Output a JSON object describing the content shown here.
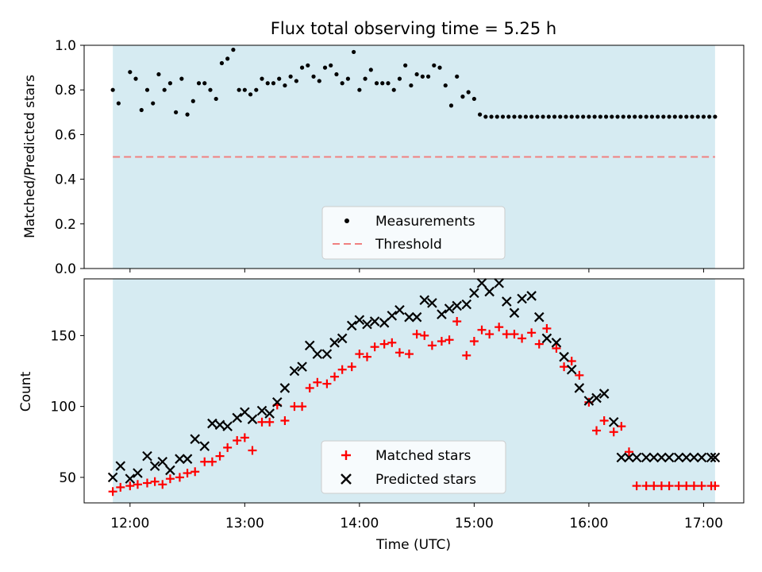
{
  "title": "Flux total observing time = 5.25 h",
  "colors": {
    "span": "#add8e6",
    "measurement": "#000000",
    "threshold": "#f08080",
    "matched": "#ff0000",
    "predicted": "#000000"
  },
  "chart_data": [
    {
      "type": "scatter",
      "ylabel": "Matched/Predicted stars",
      "xlabel": "",
      "ylim": [
        0,
        1.0
      ],
      "yticks": [
        "0.0",
        "0.2",
        "0.4",
        "0.6",
        "0.8",
        "1.0"
      ],
      "xlim": [
        "11:36",
        "17:21"
      ],
      "shaded_span": [
        "11:51",
        "17:06"
      ],
      "legend_position": "lower center",
      "threshold": {
        "name": "Threshold",
        "value": 0.5,
        "style": "dashed"
      },
      "series": [
        {
          "name": "Measurements",
          "marker": "dot",
          "x": [
            "11:51",
            "11:54",
            "12:00",
            "12:03",
            "12:06",
            "12:09",
            "12:12",
            "12:15",
            "12:18",
            "12:21",
            "12:24",
            "12:27",
            "12:30",
            "12:33",
            "12:36",
            "12:39",
            "12:42",
            "12:45",
            "12:48",
            "12:51",
            "12:54",
            "12:57",
            "13:00",
            "13:03",
            "13:06",
            "13:09",
            "13:12",
            "13:15",
            "13:18",
            "13:21",
            "13:24",
            "13:27",
            "13:30",
            "13:33",
            "13:36",
            "13:39",
            "13:42",
            "13:45",
            "13:48",
            "13:51",
            "13:54",
            "13:57",
            "14:00",
            "14:03",
            "14:06",
            "14:09",
            "14:12",
            "14:15",
            "14:18",
            "14:21",
            "14:24",
            "14:27",
            "14:30",
            "14:33",
            "14:36",
            "14:39",
            "14:42",
            "14:45",
            "14:48",
            "14:51",
            "14:54",
            "14:57",
            "15:00",
            "15:03",
            "15:06",
            "15:09",
            "15:12",
            "15:15",
            "15:18",
            "15:21",
            "15:24",
            "15:27",
            "15:30",
            "15:33",
            "15:36",
            "15:39",
            "15:42",
            "15:45",
            "15:48",
            "15:51",
            "15:54",
            "15:57",
            "16:00",
            "16:03",
            "16:06",
            "16:09",
            "16:12",
            "16:15",
            "16:18",
            "16:21",
            "16:24",
            "16:27",
            "16:30",
            "16:33",
            "16:36",
            "16:39",
            "16:42",
            "16:45",
            "16:48",
            "16:51",
            "16:54",
            "16:57",
            "17:00",
            "17:03",
            "17:06"
          ],
          "y": [
            0.8,
            0.74,
            0.88,
            0.85,
            0.71,
            0.8,
            0.74,
            0.87,
            0.8,
            0.83,
            0.7,
            0.85,
            0.69,
            0.75,
            0.83,
            0.83,
            0.8,
            0.76,
            0.92,
            0.94,
            0.98,
            0.8,
            0.8,
            0.78,
            0.8,
            0.85,
            0.83,
            0.83,
            0.85,
            0.82,
            0.86,
            0.84,
            0.9,
            0.91,
            0.86,
            0.84,
            0.9,
            0.91,
            0.87,
            0.83,
            0.85,
            0.97,
            0.8,
            0.85,
            0.89,
            0.83,
            0.83,
            0.83,
            0.8,
            0.85,
            0.91,
            0.82,
            0.87,
            0.86,
            0.86,
            0.91,
            0.9,
            0.82,
            0.73,
            0.86,
            0.77,
            0.79,
            0.76,
            0.69,
            0.68,
            0.68,
            0.68,
            0.68,
            0.68,
            0.68,
            0.68,
            0.68,
            0.68,
            0.68,
            0.68,
            0.68,
            0.68,
            0.68,
            0.68,
            0.68,
            0.68,
            0.68,
            0.68,
            0.68,
            0.68,
            0.68,
            0.68,
            0.68,
            0.68,
            0.68,
            0.68,
            0.68,
            0.68,
            0.68,
            0.68,
            0.68,
            0.68,
            0.68,
            0.68,
            0.68,
            0.68,
            0.68,
            0.68,
            0.68,
            0.68
          ]
        }
      ]
    },
    {
      "type": "scatter",
      "ylabel": "Count",
      "xlabel": "Time (UTC)",
      "ylim": [
        32,
        190
      ],
      "yticks": [
        "50",
        "100",
        "150"
      ],
      "xticks": [
        "12:00",
        "13:00",
        "14:00",
        "15:00",
        "16:00",
        "17:00"
      ],
      "xlim": [
        "11:36",
        "17:21"
      ],
      "shaded_span": [
        "11:51",
        "17:06"
      ],
      "legend_position": "lower center",
      "series": [
        {
          "name": "Matched stars",
          "marker": "plus",
          "x": [
            "11:51",
            "11:55",
            "12:00",
            "12:04",
            "12:09",
            "12:13",
            "12:17",
            "12:21",
            "12:26",
            "12:30",
            "12:34",
            "12:39",
            "12:43",
            "12:47",
            "12:51",
            "12:56",
            "13:00",
            "13:04",
            "13:09",
            "13:13",
            "13:17",
            "13:21",
            "13:26",
            "13:30",
            "13:34",
            "13:38",
            "13:43",
            "13:47",
            "13:51",
            "13:56",
            "14:00",
            "14:04",
            "14:08",
            "14:13",
            "14:17",
            "14:21",
            "14:26",
            "14:30",
            "14:34",
            "14:38",
            "14:43",
            "14:47",
            "14:51",
            "14:56",
            "15:00",
            "15:04",
            "15:08",
            "15:13",
            "15:17",
            "15:21",
            "15:25",
            "15:30",
            "15:34",
            "15:38",
            "15:43",
            "15:47",
            "15:51",
            "15:55",
            "16:00",
            "16:04",
            "16:08",
            "16:13",
            "16:17",
            "16:21",
            "16:25",
            "16:30",
            "16:34",
            "16:38",
            "16:42",
            "16:47",
            "16:51",
            "16:55",
            "16:59",
            "17:04",
            "17:06"
          ],
          "y": [
            40,
            43,
            44,
            45,
            46,
            47,
            45,
            49,
            50,
            53,
            54,
            61,
            61,
            65,
            71,
            76,
            78,
            69,
            89,
            89,
            101,
            90,
            100,
            100,
            113,
            117,
            116,
            121,
            126,
            128,
            137,
            135,
            142,
            144,
            145,
            138,
            137,
            151,
            150,
            143,
            146,
            147,
            160,
            136,
            146,
            154,
            151,
            156,
            151,
            151,
            148,
            152,
            144,
            155,
            141,
            128,
            132,
            122,
            103,
            83,
            90,
            82,
            86,
            68,
            44,
            44,
            44,
            44,
            44,
            44,
            44,
            44,
            44,
            44,
            44
          ]
        },
        {
          "name": "Predicted stars",
          "marker": "cross",
          "x": [
            "11:51",
            "11:55",
            "12:00",
            "12:04",
            "12:09",
            "12:13",
            "12:17",
            "12:21",
            "12:26",
            "12:30",
            "12:34",
            "12:39",
            "12:43",
            "12:47",
            "12:51",
            "12:56",
            "13:00",
            "13:04",
            "13:09",
            "13:13",
            "13:17",
            "13:21",
            "13:26",
            "13:30",
            "13:34",
            "13:38",
            "13:43",
            "13:47",
            "13:51",
            "13:56",
            "14:00",
            "14:04",
            "14:08",
            "14:13",
            "14:17",
            "14:21",
            "14:26",
            "14:30",
            "14:34",
            "14:38",
            "14:43",
            "14:47",
            "14:51",
            "14:56",
            "15:00",
            "15:04",
            "15:08",
            "15:13",
            "15:17",
            "15:21",
            "15:25",
            "15:30",
            "15:34",
            "15:38",
            "15:43",
            "15:47",
            "15:51",
            "15:55",
            "16:00",
            "16:04",
            "16:08",
            "16:13",
            "16:17",
            "16:21",
            "16:25",
            "16:30",
            "16:34",
            "16:38",
            "16:42",
            "16:47",
            "16:51",
            "16:55",
            "16:59",
            "17:04",
            "17:06"
          ],
          "y": [
            50,
            58,
            49,
            53,
            65,
            58,
            61,
            55,
            63,
            63,
            77,
            72,
            88,
            87,
            86,
            92,
            96,
            91,
            97,
            95,
            103,
            113,
            125,
            128,
            143,
            137,
            137,
            145,
            148,
            157,
            161,
            158,
            160,
            159,
            164,
            168,
            163,
            163,
            175,
            173,
            165,
            169,
            171,
            172,
            180,
            187,
            181,
            187,
            174,
            166,
            176,
            178,
            163,
            148,
            145,
            135,
            126,
            113,
            104,
            106,
            109,
            89,
            64,
            64,
            64,
            64,
            64,
            64,
            64,
            64,
            64,
            64,
            64,
            64,
            64
          ]
        }
      ]
    }
  ]
}
